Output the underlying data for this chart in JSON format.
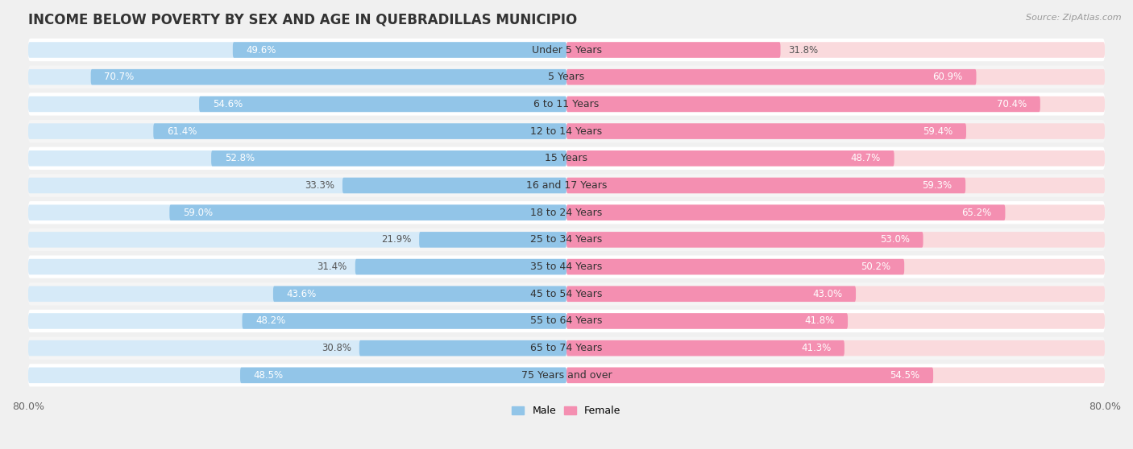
{
  "title": "INCOME BELOW POVERTY BY SEX AND AGE IN QUEBRADILLAS MUNICIPIO",
  "source": "Source: ZipAtlas.com",
  "categories": [
    "Under 5 Years",
    "5 Years",
    "6 to 11 Years",
    "12 to 14 Years",
    "15 Years",
    "16 and 17 Years",
    "18 to 24 Years",
    "25 to 34 Years",
    "35 to 44 Years",
    "45 to 54 Years",
    "55 to 64 Years",
    "65 to 74 Years",
    "75 Years and over"
  ],
  "male_values": [
    49.6,
    70.7,
    54.6,
    61.4,
    52.8,
    33.3,
    59.0,
    21.9,
    31.4,
    43.6,
    48.2,
    30.8,
    48.5
  ],
  "female_values": [
    31.8,
    60.9,
    70.4,
    59.4,
    48.7,
    59.3,
    65.2,
    53.0,
    50.2,
    43.0,
    41.8,
    41.3,
    54.5
  ],
  "male_color": "#92C5E8",
  "female_color": "#F48FB1",
  "male_bg_color": "#D6EAF8",
  "female_bg_color": "#FADADD",
  "row_bg_color": "#F2F2F2",
  "outer_bg_color": "#E8E8E8",
  "background_color": "#f0f0f0",
  "xlim": 80.0,
  "bar_height": 0.58,
  "title_fontsize": 12,
  "label_fontsize": 9,
  "value_fontsize": 8.5,
  "axis_fontsize": 9,
  "legend_fontsize": 9
}
